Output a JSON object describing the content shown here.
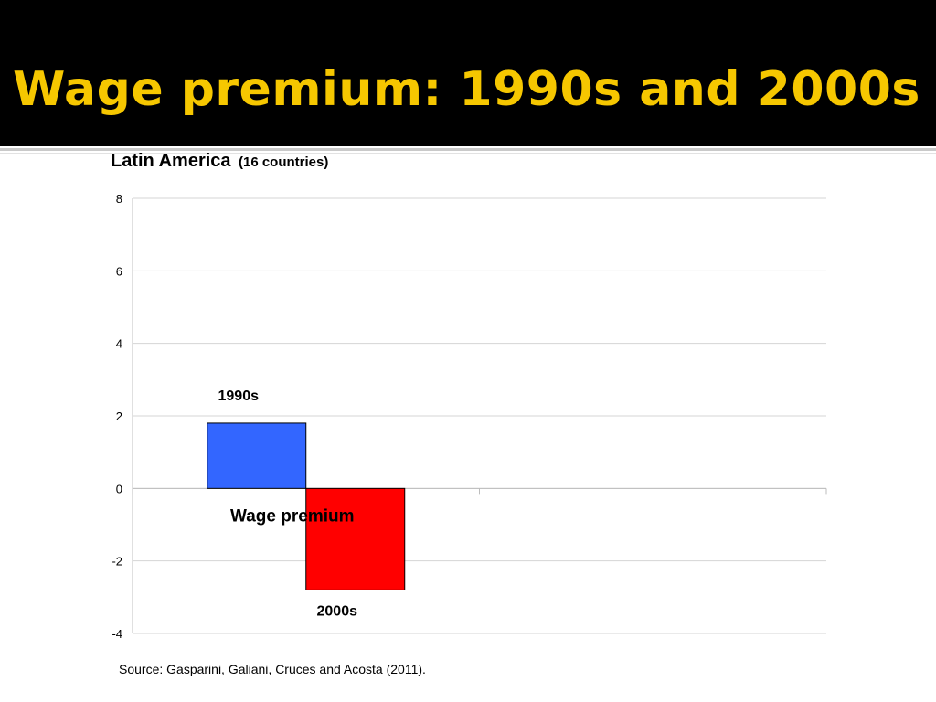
{
  "slide": {
    "title": "Wage premium: 1990s and 2000s",
    "title_color": "#f6c700",
    "header_background": "#000000"
  },
  "chart_data": {
    "type": "bar",
    "title": "Latin America",
    "subtitle": "(16 countries)",
    "categories": [
      "Wage premium"
    ],
    "series": [
      {
        "name": "1990s",
        "values": [
          1.8
        ],
        "color": "#3366ff"
      },
      {
        "name": "2000s",
        "values": [
          -2.8
        ],
        "color": "#ff0000"
      }
    ],
    "ylim": [
      -4,
      8
    ],
    "yticks": [
      "8",
      "6",
      "4",
      "2",
      "0",
      "-2",
      "-4"
    ],
    "grid": true,
    "legend": "none",
    "source": "Source: Gasparini, Galiani, Cruces and Acosta (2011)."
  }
}
